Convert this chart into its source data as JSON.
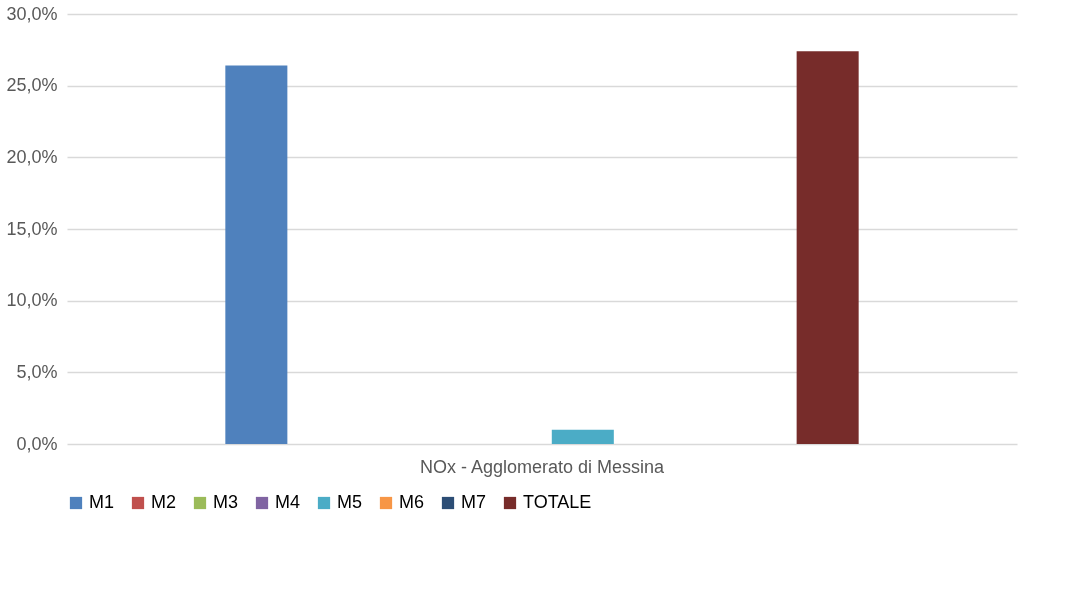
{
  "chart_data": {
    "type": "bar",
    "categories": [
      "NOx - Agglomerato di Messina"
    ],
    "series": [
      {
        "name": "M1",
        "color": "#4f81bd",
        "values": [
          26.4
        ]
      },
      {
        "name": "M2",
        "color": "#c0504d",
        "values": [
          0
        ]
      },
      {
        "name": "M3",
        "color": "#9bbb59",
        "values": [
          0
        ]
      },
      {
        "name": "M4",
        "color": "#8064a2",
        "values": [
          0
        ]
      },
      {
        "name": "M5",
        "color": "#4bacc6",
        "values": [
          1.0
        ]
      },
      {
        "name": "M6",
        "color": "#f79646",
        "values": [
          0
        ]
      },
      {
        "name": "M7",
        "color": "#2c4d75",
        "values": [
          0
        ]
      },
      {
        "name": "TOTALE",
        "color": "#772c2a",
        "values": [
          27.4
        ]
      }
    ],
    "ylim": [
      0,
      30
    ],
    "yticks": [
      {
        "value": 0,
        "label": "0,0%"
      },
      {
        "value": 5,
        "label": "5,0%"
      },
      {
        "value": 10,
        "label": "10,0%"
      },
      {
        "value": 15,
        "label": "15,0%"
      },
      {
        "value": 20,
        "label": "20,0%"
      },
      {
        "value": 25,
        "label": "25,0%"
      },
      {
        "value": 30,
        "label": "30,0%"
      }
    ],
    "grid": "y",
    "legend": "bottom"
  }
}
